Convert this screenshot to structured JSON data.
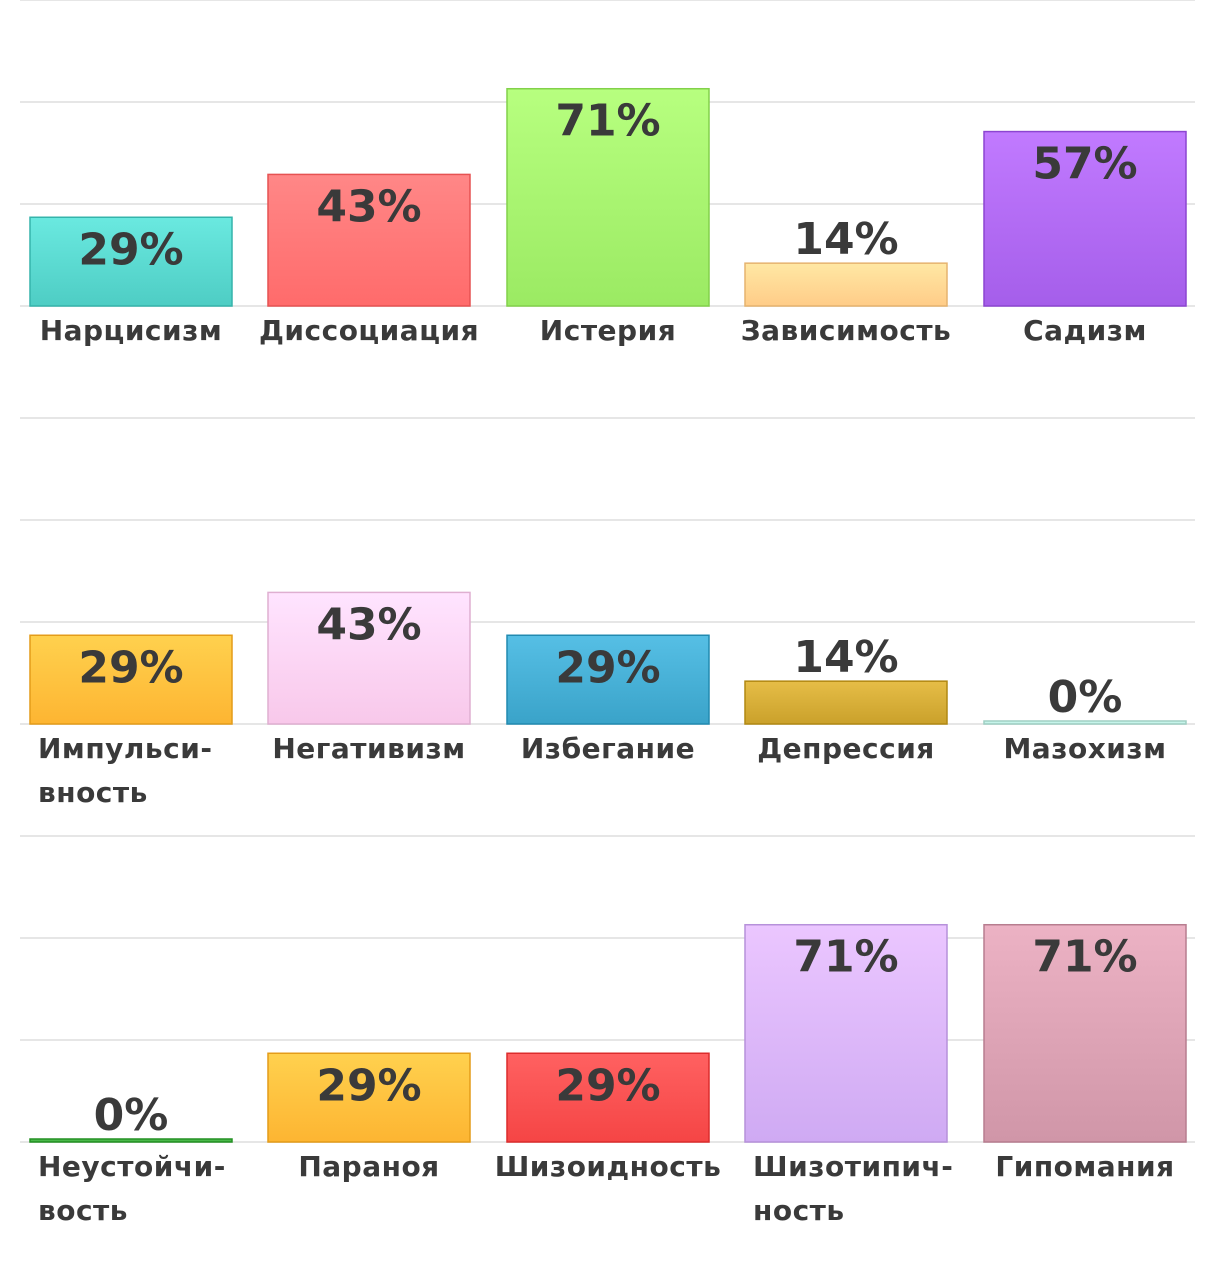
{
  "chart_data": [
    {
      "type": "bar",
      "ylim": [
        0,
        100
      ],
      "value_suffix": "%",
      "grid": true,
      "categories": [
        "Нарцисизм",
        "Диссоциация",
        "Истерия",
        "Зависимость",
        "Садизм"
      ],
      "values": [
        29,
        43,
        71,
        14,
        57
      ],
      "colors": [
        "#4ecdc4",
        "#ff6b6b",
        "#9bea63",
        "#ffcc88",
        "#a55eea"
      ]
    },
    {
      "type": "bar",
      "ylim": [
        0,
        100
      ],
      "value_suffix": "%",
      "grid": true,
      "categories": [
        "Импульси-вность",
        "Негативизм",
        "Избегание",
        "Депрессия",
        "Мазохизм"
      ],
      "category_lines": [
        [
          "Импульси-",
          "вность"
        ],
        [
          "Негативизм"
        ],
        [
          "Избегание"
        ],
        [
          "Депрессия"
        ],
        [
          "Мазохизм"
        ]
      ],
      "values": [
        29,
        43,
        29,
        14,
        0
      ],
      "colors": [
        "#fdb532",
        "#f8c8ea",
        "#3aa3c9",
        "#caa12b",
        "#b8e8dc"
      ]
    },
    {
      "type": "bar",
      "ylim": [
        0,
        100
      ],
      "value_suffix": "%",
      "grid": true,
      "categories": [
        "Неустойчи-вость",
        "Параноя",
        "Шизоидность",
        "Шизотипич-ность",
        "Гипомания"
      ],
      "category_lines": [
        [
          "Неустойчи-",
          "вость"
        ],
        [
          "Параноя"
        ],
        [
          "Шизоидность"
        ],
        [
          "Шизотипич-",
          "ность"
        ],
        [
          "Гипомания"
        ]
      ],
      "values": [
        0,
        29,
        29,
        71,
        71
      ],
      "colors": [
        "#3caa3c",
        "#fdb532",
        "#f54545",
        "#cfaaf3",
        "#d096a8"
      ]
    }
  ]
}
